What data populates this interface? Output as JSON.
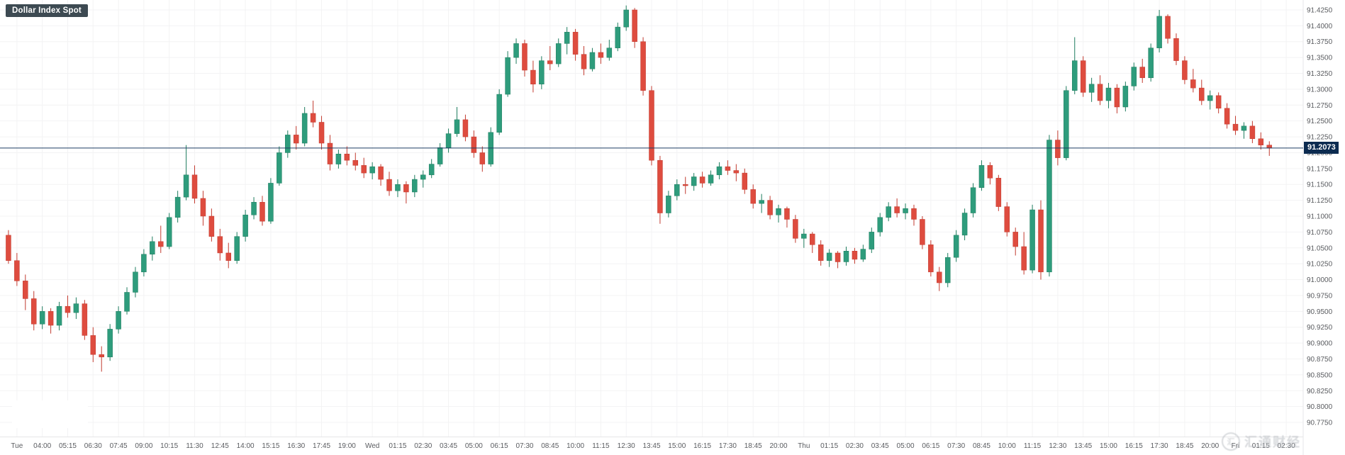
{
  "header": {
    "title": "Dollar Index Spot"
  },
  "price_scale": {
    "current_price_label": "91.2073"
  },
  "watermark": {
    "icon_char": "汇",
    "text": "汇通财经"
  },
  "colors": {
    "up": "#2E9C7C",
    "up_border": "#1F7D5F",
    "down": "#DE4C3F",
    "down_border": "#C23B30",
    "grid": "#F3F3F4",
    "axis_text": "#5A5C60",
    "axis_border": "#E6E6E8",
    "price_line": "#1C3E63",
    "price_badge_bg": "#0C2B50",
    "title_badge_bg": "#3D4A52",
    "background": "#FFFFFF"
  },
  "chart_data": {
    "type": "candlestick",
    "title": "Dollar Index Spot",
    "ylim": [
      90.775,
      91.425
    ],
    "y_tick_step": 0.025,
    "y_ticks": [
      91.425,
      91.4,
      91.375,
      91.35,
      91.325,
      91.3,
      91.275,
      91.25,
      91.225,
      91.2,
      91.175,
      91.15,
      91.125,
      91.1,
      91.075,
      91.05,
      91.025,
      91.0,
      90.975,
      90.95,
      90.925,
      90.9,
      90.875,
      90.85,
      90.825,
      90.8,
      90.775
    ],
    "x_labels": [
      "Tue",
      "04:00",
      "05:15",
      "06:30",
      "07:45",
      "09:00",
      "10:15",
      "11:30",
      "12:45",
      "14:00",
      "15:15",
      "16:30",
      "17:45",
      "19:00",
      "Wed",
      "01:15",
      "02:30",
      "03:45",
      "05:00",
      "06:15",
      "07:30",
      "08:45",
      "10:00",
      "11:15",
      "12:30",
      "13:45",
      "15:00",
      "16:15",
      "17:30",
      "18:45",
      "20:00",
      "Thu",
      "01:15",
      "02:30",
      "03:45",
      "05:00",
      "06:15",
      "07:30",
      "08:45",
      "10:00",
      "11:15",
      "12:30",
      "13:45",
      "15:00",
      "16:15",
      "17:30",
      "18:45",
      "20:00",
      "Fri",
      "01:15",
      "02:30"
    ],
    "candles_per_x_label": 3,
    "last_price": 91.2073,
    "candles": [
      [
        91.07,
        91.078,
        91.025,
        91.03
      ],
      [
        91.03,
        91.042,
        90.99,
        90.998
      ],
      [
        90.998,
        91.008,
        90.952,
        90.97
      ],
      [
        90.97,
        90.982,
        90.92,
        90.93
      ],
      [
        90.93,
        90.958,
        90.922,
        90.95
      ],
      [
        90.95,
        90.955,
        90.915,
        90.928
      ],
      [
        90.928,
        90.965,
        90.92,
        90.958
      ],
      [
        90.958,
        90.975,
        90.94,
        90.948
      ],
      [
        90.948,
        90.972,
        90.938,
        90.962
      ],
      [
        90.962,
        90.968,
        90.905,
        90.912
      ],
      [
        90.912,
        90.925,
        90.87,
        90.882
      ],
      [
        90.882,
        90.895,
        90.855,
        90.878
      ],
      [
        90.878,
        90.93,
        90.872,
        90.922
      ],
      [
        90.922,
        90.958,
        90.915,
        90.95
      ],
      [
        90.95,
        90.988,
        90.945,
        90.98
      ],
      [
        90.98,
        91.02,
        90.972,
        91.012
      ],
      [
        91.012,
        91.048,
        91.005,
        91.04
      ],
      [
        91.04,
        91.068,
        91.03,
        91.06
      ],
      [
        91.06,
        91.085,
        91.042,
        91.052
      ],
      [
        91.052,
        91.105,
        91.048,
        91.098
      ],
      [
        91.098,
        91.14,
        91.09,
        91.13
      ],
      [
        91.13,
        91.212,
        91.125,
        91.165
      ],
      [
        91.165,
        91.18,
        91.12,
        91.128
      ],
      [
        91.128,
        91.14,
        91.085,
        91.1
      ],
      [
        91.1,
        91.112,
        91.06,
        91.068
      ],
      [
        91.068,
        91.08,
        91.03,
        91.042
      ],
      [
        91.042,
        91.058,
        91.018,
        91.03
      ],
      [
        91.03,
        91.075,
        91.025,
        91.068
      ],
      [
        91.068,
        91.11,
        91.06,
        91.102
      ],
      [
        91.102,
        91.13,
        91.095,
        91.122
      ],
      [
        91.122,
        91.132,
        91.085,
        91.092
      ],
      [
        91.092,
        91.16,
        91.088,
        91.152
      ],
      [
        91.152,
        91.21,
        91.148,
        91.2
      ],
      [
        91.2,
        91.235,
        91.192,
        91.228
      ],
      [
        91.228,
        91.242,
        91.205,
        91.215
      ],
      [
        91.215,
        91.272,
        91.21,
        91.262
      ],
      [
        91.262,
        91.282,
        91.24,
        91.248
      ],
      [
        91.248,
        91.258,
        91.205,
        91.215
      ],
      [
        91.215,
        91.228,
        91.172,
        91.182
      ],
      [
        91.182,
        91.205,
        91.175,
        91.198
      ],
      [
        91.198,
        91.21,
        91.18,
        91.188
      ],
      [
        91.188,
        91.2,
        91.172,
        91.18
      ],
      [
        91.18,
        91.192,
        91.16,
        91.168
      ],
      [
        91.168,
        91.185,
        91.158,
        91.178
      ],
      [
        91.178,
        91.182,
        91.148,
        91.158
      ],
      [
        91.158,
        91.17,
        91.132,
        91.14
      ],
      [
        91.14,
        91.158,
        91.13,
        91.15
      ],
      [
        91.15,
        91.155,
        91.12,
        91.138
      ],
      [
        91.138,
        91.165,
        91.13,
        91.158
      ],
      [
        91.158,
        91.172,
        91.145,
        91.165
      ],
      [
        91.165,
        91.19,
        91.16,
        91.182
      ],
      [
        91.182,
        91.215,
        91.178,
        91.208
      ],
      [
        91.208,
        91.238,
        91.2,
        91.23
      ],
      [
        91.23,
        91.272,
        91.225,
        91.252
      ],
      [
        91.252,
        91.26,
        91.218,
        91.225
      ],
      [
        91.225,
        91.235,
        91.192,
        91.2
      ],
      [
        91.2,
        91.21,
        91.17,
        91.182
      ],
      [
        91.182,
        91.24,
        91.178,
        91.232
      ],
      [
        91.232,
        91.3,
        91.228,
        91.292
      ],
      [
        91.292,
        91.36,
        91.288,
        91.35
      ],
      [
        91.35,
        91.38,
        91.34,
        91.372
      ],
      [
        91.372,
        91.378,
        91.32,
        91.33
      ],
      [
        91.33,
        91.345,
        91.295,
        91.308
      ],
      [
        91.308,
        91.352,
        91.3,
        91.345
      ],
      [
        91.345,
        91.368,
        91.33,
        91.34
      ],
      [
        91.34,
        91.38,
        91.335,
        91.372
      ],
      [
        91.372,
        91.398,
        91.355,
        91.39
      ],
      [
        91.39,
        91.395,
        91.345,
        91.355
      ],
      [
        91.355,
        91.368,
        91.322,
        91.332
      ],
      [
        91.332,
        91.365,
        91.328,
        91.358
      ],
      [
        91.358,
        91.372,
        91.34,
        91.35
      ],
      [
        91.35,
        91.378,
        91.345,
        91.365
      ],
      [
        91.365,
        91.405,
        91.36,
        91.398
      ],
      [
        91.398,
        91.432,
        91.392,
        91.425
      ],
      [
        91.425,
        91.428,
        91.365,
        91.375
      ],
      [
        91.375,
        91.382,
        91.29,
        91.298
      ],
      [
        91.298,
        91.305,
        91.18,
        91.188
      ],
      [
        91.188,
        91.195,
        91.088,
        91.105
      ],
      [
        91.105,
        91.14,
        91.098,
        91.132
      ],
      [
        91.132,
        91.158,
        91.125,
        91.15
      ],
      [
        91.15,
        91.162,
        91.135,
        91.148
      ],
      [
        91.148,
        91.168,
        91.14,
        91.162
      ],
      [
        91.162,
        91.17,
        91.145,
        91.152
      ],
      [
        91.152,
        91.172,
        91.148,
        91.165
      ],
      [
        91.165,
        91.185,
        91.158,
        91.178
      ],
      [
        91.178,
        91.188,
        91.165,
        91.172
      ],
      [
        91.172,
        91.182,
        91.155,
        91.168
      ],
      [
        91.168,
        91.175,
        91.135,
        91.142
      ],
      [
        91.142,
        91.15,
        91.112,
        91.12
      ],
      [
        91.12,
        91.135,
        91.105,
        91.125
      ],
      [
        91.125,
        91.132,
        91.095,
        91.102
      ],
      [
        91.102,
        91.118,
        91.09,
        91.112
      ],
      [
        91.112,
        91.115,
        91.082,
        91.095
      ],
      [
        91.095,
        91.102,
        91.058,
        91.065
      ],
      [
        91.065,
        91.08,
        91.05,
        91.072
      ],
      [
        91.072,
        91.075,
        91.042,
        91.055
      ],
      [
        91.055,
        91.062,
        91.022,
        91.03
      ],
      [
        91.03,
        91.048,
        91.02,
        91.042
      ],
      [
        91.042,
        91.045,
        91.018,
        91.028
      ],
      [
        91.028,
        91.052,
        91.022,
        91.045
      ],
      [
        91.045,
        91.05,
        91.025,
        91.032
      ],
      [
        91.032,
        91.055,
        91.028,
        91.048
      ],
      [
        91.048,
        91.082,
        91.042,
        91.075
      ],
      [
        91.075,
        91.105,
        91.068,
        91.098
      ],
      [
        91.098,
        91.122,
        91.092,
        91.115
      ],
      [
        91.115,
        91.128,
        91.098,
        91.105
      ],
      [
        91.105,
        91.12,
        91.095,
        91.112
      ],
      [
        91.112,
        91.118,
        91.085,
        91.095
      ],
      [
        91.095,
        91.1,
        91.048,
        91.055
      ],
      [
        91.055,
        91.062,
        91.005,
        91.012
      ],
      [
        91.012,
        91.02,
        90.982,
        90.995
      ],
      [
        90.995,
        91.042,
        90.988,
        91.035
      ],
      [
        91.035,
        91.078,
        91.028,
        91.07
      ],
      [
        91.07,
        91.112,
        91.062,
        91.105
      ],
      [
        91.105,
        91.152,
        91.098,
        91.145
      ],
      [
        91.145,
        91.188,
        91.14,
        91.18
      ],
      [
        91.18,
        91.185,
        91.15,
        91.16
      ],
      [
        91.16,
        91.165,
        91.108,
        91.115
      ],
      [
        91.115,
        91.122,
        91.068,
        91.075
      ],
      [
        91.075,
        91.082,
        91.038,
        91.052
      ],
      [
        91.052,
        91.075,
        91.008,
        91.015
      ],
      [
        91.015,
        91.118,
        91.01,
        91.11
      ],
      [
        91.11,
        91.125,
        91.0,
        91.012
      ],
      [
        91.012,
        91.228,
        91.005,
        91.22
      ],
      [
        91.22,
        91.235,
        91.18,
        91.192
      ],
      [
        91.192,
        91.305,
        91.188,
        91.298
      ],
      [
        91.298,
        91.382,
        91.292,
        91.345
      ],
      [
        91.345,
        91.352,
        91.288,
        91.295
      ],
      [
        91.295,
        91.318,
        91.28,
        91.308
      ],
      [
        91.308,
        91.322,
        91.275,
        91.282
      ],
      [
        91.282,
        91.31,
        91.27,
        91.302
      ],
      [
        91.302,
        91.308,
        91.262,
        91.272
      ],
      [
        91.272,
        91.312,
        91.265,
        91.305
      ],
      [
        91.305,
        91.342,
        91.298,
        91.335
      ],
      [
        91.335,
        91.348,
        91.31,
        91.318
      ],
      [
        91.318,
        91.372,
        91.312,
        91.365
      ],
      [
        91.365,
        91.425,
        91.358,
        91.415
      ],
      [
        91.415,
        91.418,
        91.372,
        91.38
      ],
      [
        91.38,
        91.388,
        91.338,
        91.345
      ],
      [
        91.345,
        91.352,
        91.308,
        91.315
      ],
      [
        91.315,
        91.332,
        91.295,
        91.302
      ],
      [
        91.302,
        91.315,
        91.275,
        91.282
      ],
      [
        91.282,
        91.298,
        91.268,
        91.29
      ],
      [
        91.29,
        91.295,
        91.262,
        91.27
      ],
      [
        91.27,
        91.278,
        91.238,
        91.245
      ],
      [
        91.245,
        91.258,
        91.228,
        91.235
      ],
      [
        91.235,
        91.248,
        91.222,
        91.242
      ],
      [
        91.242,
        91.25,
        91.215,
        91.222
      ],
      [
        91.222,
        91.232,
        91.205,
        91.212
      ],
      [
        91.212,
        91.218,
        91.195,
        91.2073
      ]
    ]
  }
}
